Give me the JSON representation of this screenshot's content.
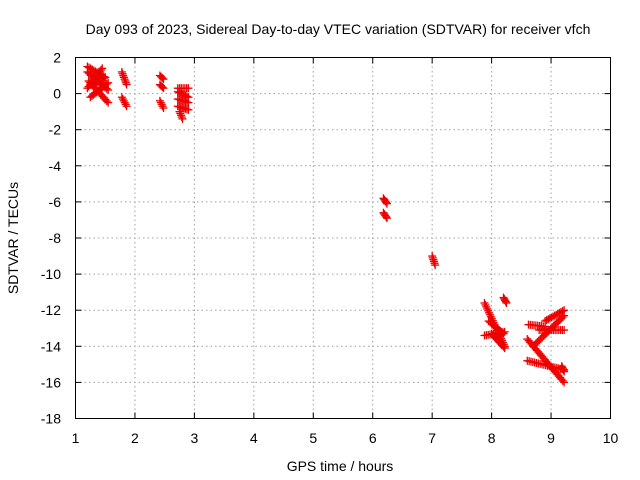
{
  "chart_data": {
    "type": "scatter",
    "title": "Day 093 of 2023, Sidereal Day-to-day VTEC variation (SDTVAR) for receiver vfch",
    "xlabel": "GPS time / hours",
    "ylabel": "SDTVAR / TECUs",
    "xlim": [
      1,
      10
    ],
    "ylim": [
      -18,
      2
    ],
    "xticks": [
      "1",
      "2",
      "3",
      "4",
      "5",
      "6",
      "7",
      "8",
      "9",
      "10"
    ],
    "yticks": [
      "2",
      "0",
      "-2",
      "-4",
      "-6",
      "-8",
      "-10",
      "-12",
      "-14",
      "-16",
      "-18"
    ],
    "grid": true,
    "marker": "plus",
    "color": "#ee0000",
    "series": [
      {
        "name": "SDTVAR",
        "segments": [
          {
            "x": [
              1.2,
              1.5
            ],
            "y": [
              1.5,
              0.9
            ]
          },
          {
            "x": [
              1.2,
              1.55
            ],
            "y": [
              1.2,
              0.2
            ]
          },
          {
            "x": [
              1.22,
              1.55
            ],
            "y": [
              0.7,
              -0.5
            ]
          },
          {
            "x": [
              1.2,
              1.45
            ],
            "y": [
              0.3,
              1.4
            ]
          },
          {
            "x": [
              1.25,
              1.55
            ],
            "y": [
              -0.2,
              0.6
            ]
          },
          {
            "x": [
              1.3,
              1.5
            ],
            "y": [
              0.5,
              0.9
            ]
          },
          {
            "x": [
              1.78,
              1.86
            ],
            "y": [
              1.2,
              0.5
            ]
          },
          {
            "x": [
              1.78,
              1.86
            ],
            "y": [
              -0.2,
              -0.7
            ]
          },
          {
            "x": [
              2.42,
              2.48
            ],
            "y": [
              1.0,
              0.8
            ]
          },
          {
            "x": [
              2.42,
              2.48
            ],
            "y": [
              0.5,
              0.3
            ]
          },
          {
            "x": [
              2.42,
              2.48
            ],
            "y": [
              -0.4,
              -0.8
            ]
          },
          {
            "x": [
              2.72,
              2.9
            ],
            "y": [
              0.3,
              0.3
            ]
          },
          {
            "x": [
              2.72,
              2.9
            ],
            "y": [
              0.1,
              -0.2
            ]
          },
          {
            "x": [
              2.72,
              2.9
            ],
            "y": [
              -0.3,
              -0.5
            ]
          },
          {
            "x": [
              2.72,
              2.9
            ],
            "y": [
              -0.7,
              -0.9
            ]
          },
          {
            "x": [
              2.75,
              2.8
            ],
            "y": [
              -1.0,
              -1.4
            ]
          },
          {
            "x": [
              6.18,
              6.24
            ],
            "y": [
              -5.8,
              -6.1
            ]
          },
          {
            "x": [
              6.18,
              6.24
            ],
            "y": [
              -6.6,
              -6.9
            ]
          },
          {
            "x": [
              7.0,
              7.05
            ],
            "y": [
              -9.0,
              -9.5
            ]
          },
          {
            "x": [
              7.88,
              8.22
            ],
            "y": [
              -11.6,
              -14.0
            ]
          },
          {
            "x": [
              7.88,
              8.22
            ],
            "y": [
              -13.4,
              -13.2
            ]
          },
          {
            "x": [
              8.0,
              8.22
            ],
            "y": [
              -13.3,
              -14.1
            ]
          },
          {
            "x": [
              7.95,
              8.2
            ],
            "y": [
              -12.6,
              -13.3
            ]
          },
          {
            "x": [
              8.2,
              8.25
            ],
            "y": [
              -11.3,
              -11.6
            ]
          },
          {
            "x": [
              8.6,
              9.22
            ],
            "y": [
              -13.6,
              -16.0
            ]
          },
          {
            "x": [
              8.6,
              9.22
            ],
            "y": [
              -14.8,
              -15.3
            ]
          },
          {
            "x": [
              8.62,
              8.9
            ],
            "y": [
              -12.8,
              -12.9
            ]
          },
          {
            "x": [
              8.9,
              9.22
            ],
            "y": [
              -12.6,
              -12.0
            ]
          },
          {
            "x": [
              8.7,
              9.22
            ],
            "y": [
              -14.0,
              -12.3
            ]
          },
          {
            "x": [
              8.8,
              9.22
            ],
            "y": [
              -13.1,
              -13.1
            ]
          },
          {
            "x": [
              9.18,
              9.22
            ],
            "y": [
              -15.1,
              -15.4
            ]
          }
        ],
        "points_per_unit_x": 30
      }
    ]
  }
}
